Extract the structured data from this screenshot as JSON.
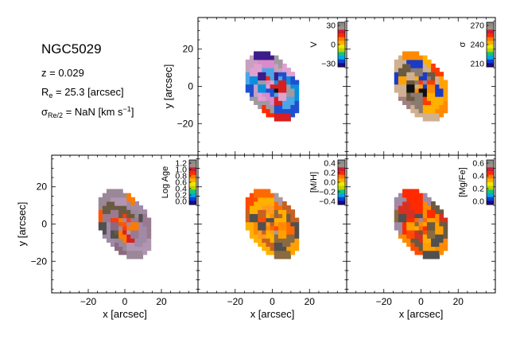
{
  "header": {
    "galaxy": "NGC5029",
    "redshift_label": "z = 0.029",
    "re_symbol": "R",
    "re_sub": "e",
    "re_value": " = 25.3 [arcsec]",
    "sigma_symbol": "σ",
    "sigma_sub": "Re/2",
    "sigma_value": " = NaN [km s",
    "sigma_exp": "−1",
    "sigma_close": "]"
  },
  "colors": {
    "colormap": [
      "#1a0a8c",
      "#0a3fd6",
      "#00a8e8",
      "#19c27a",
      "#b8d400",
      "#f2e600",
      "#ffb000",
      "#ff7a00",
      "#ff2a00",
      "#c81e3c",
      "#a09080",
      "#8a8a8a"
    ],
    "black": "#000000"
  },
  "chart_data": [
    {
      "type": "heatmap",
      "panel": "V",
      "cbar_label": "V",
      "cbar_ticks": [
        "30",
        "0",
        "−30"
      ],
      "cbar_range": [
        -35,
        35
      ],
      "xlabel": "",
      "ylabel": "y [arcsec]",
      "yticks": [
        "20",
        "0",
        "−20"
      ],
      "xticks": [],
      "xlim": [
        -40,
        40
      ],
      "ylim": [
        -37,
        37
      ],
      "ellipse": {
        "cx": 0,
        "cy": 0,
        "a": 13,
        "b": 20,
        "angle_deg": 30
      }
    },
    {
      "type": "heatmap",
      "panel": "sigma",
      "cbar_label": "σ",
      "cbar_ticks": [
        "270",
        "240",
        "210"
      ],
      "cbar_range": [
        200,
        280
      ],
      "xlabel": "",
      "ylabel": "",
      "yticks": [],
      "xticks": [],
      "xlim": [
        -40,
        40
      ],
      "ylim": [
        -37,
        37
      ],
      "ellipse": {
        "cx": 0,
        "cy": 0,
        "a": 13,
        "b": 20,
        "angle_deg": 30
      }
    },
    {
      "type": "heatmap",
      "panel": "Log Age",
      "cbar_label": "Log Age",
      "cbar_ticks": [
        "1.2",
        "1.0",
        "0.8",
        "0.6",
        "0.4",
        "0.2",
        "0.0"
      ],
      "cbar_range": [
        0.0,
        1.25
      ],
      "xlabel": "x [arcsec]",
      "ylabel": "y [arcsec]",
      "yticks": [
        "20",
        "0",
        "−20"
      ],
      "xticks": [
        "−20",
        "0",
        "20"
      ],
      "xlim": [
        -40,
        40
      ],
      "ylim": [
        -37,
        37
      ],
      "ellipse": {
        "cx": 0,
        "cy": 0,
        "a": 13,
        "b": 20,
        "angle_deg": 30
      }
    },
    {
      "type": "heatmap",
      "panel": "[M/H]",
      "cbar_label": "[M/H]",
      "cbar_ticks": [
        "0.4",
        "0.2",
        "0.0",
        "−0.2",
        "−0.4"
      ],
      "cbar_range": [
        -0.45,
        0.45
      ],
      "xlabel": "x [arcsec]",
      "ylabel": "",
      "yticks": [],
      "xticks": [
        "−20",
        "0",
        "20"
      ],
      "xlim": [
        -40,
        40
      ],
      "ylim": [
        -37,
        37
      ],
      "ellipse": {
        "cx": 0,
        "cy": 0,
        "a": 13,
        "b": 20,
        "angle_deg": 30
      }
    },
    {
      "type": "heatmap",
      "panel": "[Mg/Fe]",
      "cbar_label": "[Mg/Fe]",
      "cbar_ticks": [
        "0.6",
        "0.4",
        "0.2",
        "0.0"
      ],
      "cbar_range": [
        -0.05,
        0.65
      ],
      "xlabel": "x [arcsec]",
      "ylabel": "",
      "yticks": [],
      "xticks": [
        "−20",
        "0",
        "20"
      ],
      "xlim": [
        -40,
        40
      ],
      "ylim": [
        -37,
        37
      ],
      "ellipse": {
        "cx": 0,
        "cy": 0,
        "a": 13,
        "b": 20,
        "angle_deg": 30
      }
    }
  ]
}
